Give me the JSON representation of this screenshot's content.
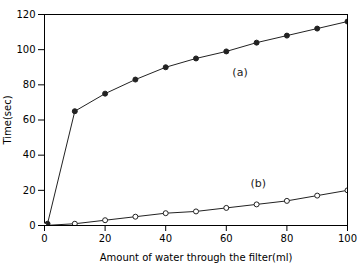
{
  "chart_data": {
    "type": "line",
    "xlabel": "Amount of water through the filter(ml)",
    "ylabel": "Time(sec)",
    "color": "#222222",
    "series": [
      {
        "x": [
          0,
          1,
          10,
          20,
          30,
          40,
          50,
          60,
          70,
          80,
          90,
          100
        ],
        "values": [
          0,
          1,
          65,
          75,
          83,
          90,
          95,
          99,
          104,
          108,
          112,
          116
        ],
        "marker": "filled"
      },
      {
        "x": [
          0,
          10,
          20,
          30,
          40,
          50,
          60,
          70,
          80,
          90,
          100
        ],
        "values": [
          0,
          1,
          3,
          5,
          7,
          8,
          10,
          12,
          14,
          17,
          20
        ],
        "marker": "open"
      }
    ],
    "annotations": [
      {
        "text": "(a)",
        "x": 62,
        "y": 85
      },
      {
        "text": "(b)",
        "x": 68,
        "y": 22
      }
    ],
    "xlim": [
      0,
      100
    ],
    "ylim": [
      0,
      120
    ],
    "xticks": [
      0,
      20,
      40,
      60,
      80,
      100
    ],
    "yticks": [
      0,
      20,
      40,
      60,
      80,
      100,
      120
    ],
    "grid": false
  }
}
